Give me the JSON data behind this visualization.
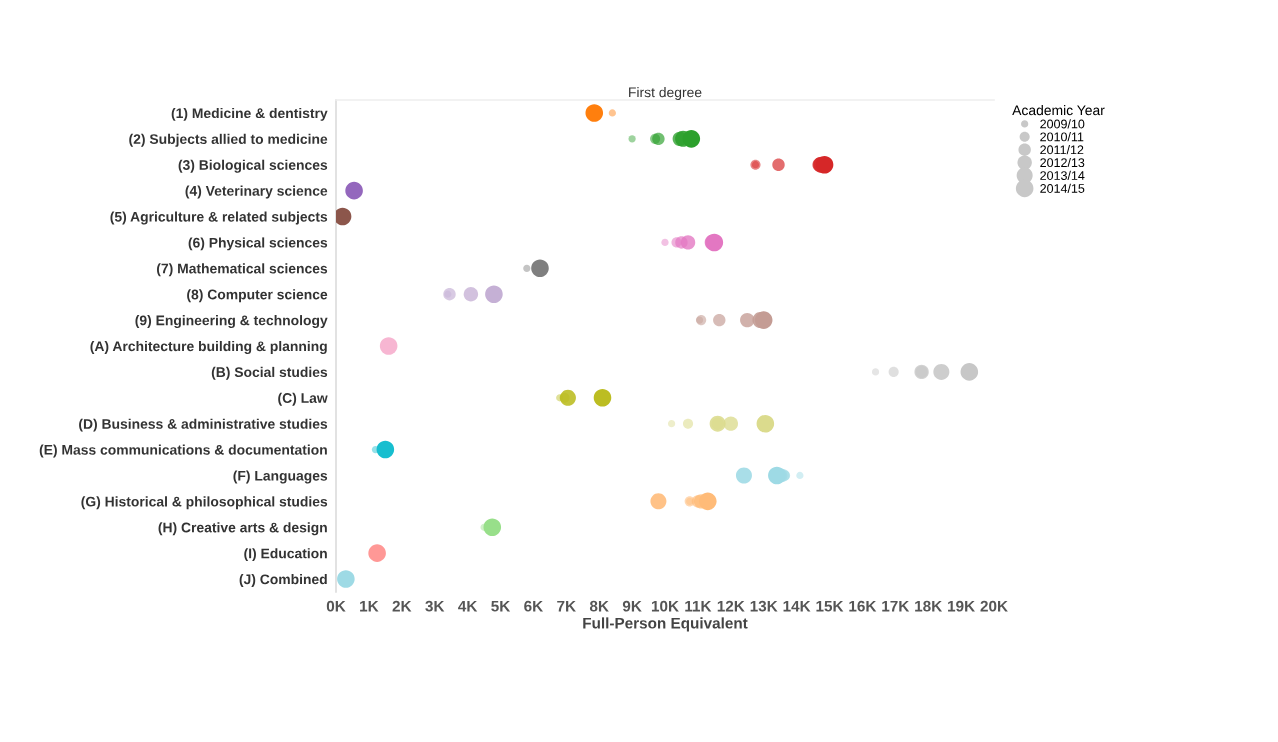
{
  "chart_data": {
    "type": "bubble",
    "orientation": "horizontal",
    "title": "First degree",
    "xlabel": "Full-Person Equivalent",
    "legend_title": "Academic Year",
    "legend": "top right",
    "marker": "circle",
    "grid": false,
    "categories": [
      "(1) Medicine & dentistry",
      "(2) Subjects allied to medicine",
      "(3) Biological sciences",
      "(4) Veterinary science",
      "(5) Agriculture & related subjects",
      "(6) Physical sciences",
      "(7) Mathematical sciences",
      "(8) Computer science",
      "(9) Engineering & technology",
      "(A) Architecture building & planning",
      "(B) Social studies",
      "(C) Law",
      "(D) Business & administrative studies",
      "(E) Mass communications & documentation",
      "(F) Languages",
      "(G) Historical & philosophical studies",
      "(H) Creative arts & design",
      "(I) Education",
      "(J) Combined"
    ],
    "xlim": [
      0,
      20000
    ],
    "xticks": [
      {
        "value": 0,
        "label": "0K"
      },
      {
        "value": 1000,
        "label": "1K"
      },
      {
        "value": 2000,
        "label": "2K"
      },
      {
        "value": 3000,
        "label": "3K"
      },
      {
        "value": 4000,
        "label": "4K"
      },
      {
        "value": 5000,
        "label": "5K"
      },
      {
        "value": 6000,
        "label": "6K"
      },
      {
        "value": 7000,
        "label": "7K"
      },
      {
        "value": 8000,
        "label": "8K"
      },
      {
        "value": 9000,
        "label": "9K"
      },
      {
        "value": 10000,
        "label": "10K"
      },
      {
        "value": 11000,
        "label": "11K"
      },
      {
        "value": 12000,
        "label": "12K"
      },
      {
        "value": 13000,
        "label": "13K"
      },
      {
        "value": 14000,
        "label": "14K"
      },
      {
        "value": 15000,
        "label": "15K"
      },
      {
        "value": 16000,
        "label": "16K"
      },
      {
        "value": 17000,
        "label": "17K"
      },
      {
        "value": 18000,
        "label": "18K"
      },
      {
        "value": 19000,
        "label": "19K"
      },
      {
        "value": 20000,
        "label": "20K"
      }
    ],
    "series": [
      {
        "name": "2009/10",
        "values": [
          8400,
          9000,
          12750,
          null,
          null,
          10000,
          5800,
          3400,
          11050,
          null,
          16400,
          6800,
          10200,
          1200,
          14100,
          10750,
          4500,
          null,
          null
        ],
        "sizes": [
          0.17,
          0.17,
          0.17,
          null,
          null,
          0.17,
          0.17,
          0.17,
          0.17,
          null,
          0.17,
          0.17,
          0.17,
          0.17,
          0.17,
          0.17,
          0.17,
          null,
          null
        ],
        "colors": [
          "#ff7f0e",
          "#2ca02c",
          "#d62728",
          "#9467bd",
          "#8c564b",
          "#e377c2",
          "#7f7f7f",
          "#c5b0d5",
          "#c49c94",
          "#f7b6d2",
          "#c7c7c7",
          "#bcbd22",
          "#dbdb8d",
          "#17becf",
          "#9edae5",
          "#ffbb78",
          "#98df8a",
          "#ff9896",
          "#9edae5"
        ]
      },
      {
        "name": "2010/11",
        "values": [
          null,
          9700,
          12750,
          null,
          null,
          10350,
          null,
          null,
          11100,
          null,
          16950,
          6950,
          10700,
          null,
          13650,
          10750,
          null,
          null,
          null
        ],
        "sizes": [
          null,
          0.33,
          0.33,
          null,
          null,
          0.33,
          null,
          null,
          0.33,
          null,
          0.33,
          0.33,
          0.33,
          null,
          0.33,
          0.33,
          null,
          null,
          null
        ],
        "colors": [
          "#ff7f0e",
          "#2ca02c",
          "#d62728",
          "#9467bd",
          "#8c564b",
          "#e377c2",
          "#7f7f7f",
          "#c5b0d5",
          "#c49c94",
          "#f7b6d2",
          "#c7c7c7",
          "#bcbd22",
          "#dbdb8d",
          "#17becf",
          "#9edae5",
          "#ffbb78",
          "#98df8a",
          "#ff9896",
          "#9edae5"
        ]
      },
      {
        "name": "2011/12",
        "values": [
          null,
          9800,
          13450,
          null,
          null,
          10500,
          null,
          3450,
          11650,
          null,
          17800,
          null,
          11600,
          null,
          13600,
          11000,
          null,
          null,
          null
        ],
        "sizes": [
          null,
          0.5,
          0.5,
          null,
          null,
          0.5,
          null,
          0.5,
          0.5,
          null,
          0.5,
          null,
          0.5,
          null,
          0.5,
          0.5,
          null,
          null,
          null
        ],
        "colors": [
          "#ff7f0e",
          "#2ca02c",
          "#d62728",
          "#9467bd",
          "#8c564b",
          "#e377c2",
          "#7f7f7f",
          "#c5b0d5",
          "#c49c94",
          "#f7b6d2",
          "#c7c7c7",
          "#bcbd22",
          "#dbdb8d",
          "#17becf",
          "#9edae5",
          "#ffbb78",
          "#98df8a",
          "#ff9896",
          "#9edae5"
        ]
      },
      {
        "name": "2012/13",
        "values": [
          null,
          10450,
          14700,
          null,
          null,
          10700,
          null,
          4100,
          12500,
          null,
          17800,
          null,
          12000,
          null,
          13500,
          11100,
          null,
          null,
          null
        ],
        "sizes": [
          null,
          0.67,
          0.67,
          null,
          null,
          0.67,
          null,
          0.67,
          0.67,
          null,
          0.67,
          null,
          0.67,
          null,
          0.67,
          0.67,
          null,
          null,
          null
        ],
        "colors": [
          "#ff7f0e",
          "#2ca02c",
          "#d62728",
          "#9467bd",
          "#8c564b",
          "#e377c2",
          "#7f7f7f",
          "#c5b0d5",
          "#c49c94",
          "#f7b6d2",
          "#c7c7c7",
          "#bcbd22",
          "#dbdb8d",
          "#17becf",
          "#9edae5",
          "#ffbb78",
          "#98df8a",
          "#ff9896",
          "#9edae5"
        ]
      },
      {
        "name": "2013/14",
        "values": [
          null,
          10550,
          14750,
          null,
          null,
          11450,
          null,
          null,
          12900,
          null,
          18400,
          7050,
          11600,
          null,
          12400,
          9800,
          null,
          null,
          null
        ],
        "sizes": [
          null,
          0.83,
          0.83,
          null,
          null,
          0.83,
          null,
          null,
          0.83,
          null,
          0.83,
          0.83,
          0.83,
          null,
          0.83,
          0.83,
          null,
          null,
          null
        ],
        "colors": [
          "#ff7f0e",
          "#2ca02c",
          "#d62728",
          "#9467bd",
          "#8c564b",
          "#e377c2",
          "#7f7f7f",
          "#c5b0d5",
          "#c49c94",
          "#f7b6d2",
          "#c7c7c7",
          "#bcbd22",
          "#dbdb8d",
          "#17becf",
          "#9edae5",
          "#ffbb78",
          "#98df8a",
          "#ff9896",
          "#9edae5"
        ]
      },
      {
        "name": "2014/15",
        "values": [
          7850,
          10800,
          14850,
          550,
          200,
          11500,
          6200,
          4800,
          13000,
          1600,
          19250,
          8100,
          13050,
          1500,
          13400,
          11300,
          4750,
          1250,
          300
        ],
        "sizes": [
          1,
          1,
          1,
          1,
          1,
          1,
          1,
          1,
          1,
          1,
          1,
          1,
          1,
          1,
          1,
          1,
          1,
          1,
          1
        ],
        "colors": [
          "#ff7f0e",
          "#2ca02c",
          "#d62728",
          "#9467bd",
          "#8c564b",
          "#e377c2",
          "#7f7f7f",
          "#c5b0d5",
          "#c49c94",
          "#f7b6d2",
          "#c7c7c7",
          "#bcbd22",
          "#dbdb8d",
          "#17becf",
          "#9edae5",
          "#ffbb78",
          "#98df8a",
          "#ff9896",
          "#9edae5"
        ]
      }
    ]
  }
}
